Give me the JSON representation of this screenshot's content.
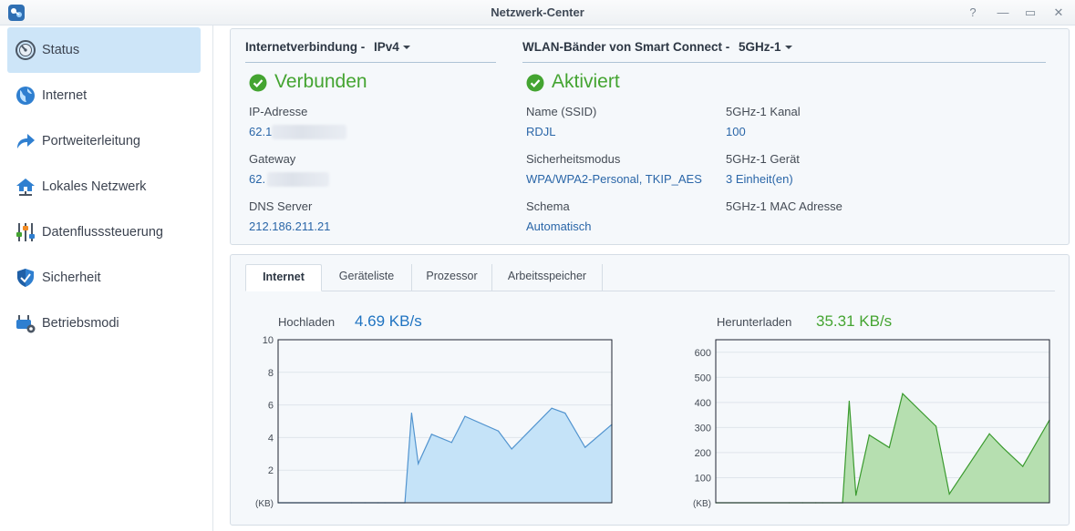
{
  "window": {
    "title": "Netzwerk-Center",
    "icon": "network-center-icon",
    "buttons": {
      "help": "?",
      "minimize": "—",
      "maximize": "▭",
      "close": "✕"
    }
  },
  "sidebar": {
    "items": [
      {
        "label": "Status",
        "icon": "gauge-icon",
        "active": true
      },
      {
        "label": "Internet",
        "icon": "globe-icon"
      },
      {
        "label": "Portweiterleitung",
        "icon": "forward-arrow-icon"
      },
      {
        "label": "Lokales Netzwerk",
        "icon": "home-network-icon"
      },
      {
        "label": "Datenflusssteuerung",
        "icon": "sliders-icon"
      },
      {
        "label": "Sicherheit",
        "icon": "shield-icon"
      },
      {
        "label": "Betriebsmodi",
        "icon": "router-gear-icon"
      }
    ]
  },
  "internet": {
    "heading": "Internetverbindung -",
    "selected": "IPv4",
    "status": "Verbunden",
    "ip_label": "IP-Adresse",
    "ip_value": "62.1",
    "gateway_label": "Gateway",
    "gateway_value": "62.",
    "dns_label": "DNS Server",
    "dns_value": "212.186.211.21"
  },
  "wlan": {
    "heading": "WLAN-Bänder von Smart Connect -",
    "selected": "5GHz-1",
    "status": "Aktiviert",
    "ssid_label": "Name (SSID)",
    "ssid_value": "RDJL",
    "security_label": "Sicherheitsmodus",
    "security_value": "WPA/WPA2-Personal, TKIP_AES",
    "schema_label": "Schema",
    "schema_value": "Automatisch",
    "channel_label": "5GHz-1 Kanal",
    "channel_value": "100",
    "device_label": "5GHz-1 Gerät",
    "device_value": "3 Einheit(en)",
    "mac_label": "5GHz-1 MAC Adresse"
  },
  "tabs": [
    "Internet",
    "Geräteliste",
    "Prozessor",
    "Arbeitsspeicher"
  ],
  "colors": {
    "upload_line": "#5294cf",
    "upload_fill": "#c5e3f8",
    "download_line": "#3a9a2e",
    "download_fill": "#b6dfb0",
    "upload_value": "#1f73c1",
    "download_value": "#44a431"
  },
  "chart_data": [
    {
      "type": "area",
      "label": "Hochladen",
      "current": "4.69 KB/s",
      "unit_label": "(KB)",
      "ylim": [
        0,
        10
      ],
      "yticks": [
        2,
        4,
        6,
        8,
        10
      ],
      "y_tick_labels": [
        "2",
        "4",
        "6",
        "8",
        "10"
      ],
      "x": [
        0,
        11,
        13,
        15,
        16,
        19,
        20,
        21,
        23,
        26,
        28,
        33,
        35,
        41,
        43,
        46,
        50
      ],
      "values": [
        0,
        0,
        0,
        0,
        0,
        0,
        5.5,
        2.4,
        4.2,
        3.7,
        5.3,
        4.4,
        3.3,
        5.8,
        5.5,
        3.4,
        4.8
      ]
    },
    {
      "type": "area",
      "label": "Herunterladen",
      "current": "35.31 KB/s",
      "unit_label": "(KB)",
      "ylim": [
        0,
        650
      ],
      "yticks": [
        100,
        200,
        300,
        400,
        500,
        600
      ],
      "y_tick_labels": [
        "100",
        "200",
        "300",
        "400",
        "500",
        "600"
      ],
      "x": [
        0,
        11,
        13,
        15,
        16,
        19,
        20,
        21,
        23,
        26,
        28,
        33,
        35,
        41,
        43,
        46,
        50
      ],
      "values": [
        0,
        0,
        0,
        0,
        0,
        0,
        405,
        30,
        270,
        220,
        435,
        305,
        35,
        275,
        220,
        145,
        330
      ]
    }
  ]
}
